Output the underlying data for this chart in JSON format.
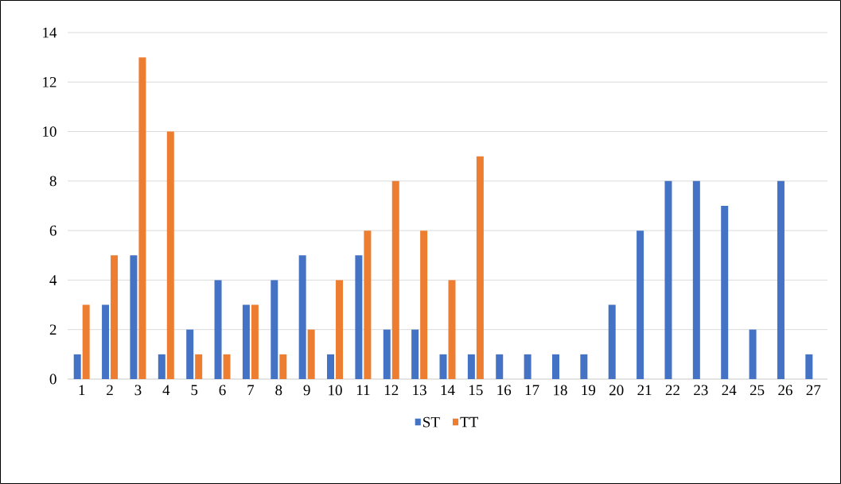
{
  "chart_data": {
    "type": "bar",
    "categories": [
      "1",
      "2",
      "3",
      "4",
      "5",
      "6",
      "7",
      "8",
      "9",
      "10",
      "11",
      "12",
      "13",
      "14",
      "15",
      "16",
      "17",
      "18",
      "19",
      "20",
      "21",
      "22",
      "23",
      "24",
      "25",
      "26",
      "27"
    ],
    "series": [
      {
        "name": "ST",
        "color": "#4472c4",
        "values": [
          1,
          3,
          5,
          1,
          2,
          4,
          3,
          4,
          5,
          1,
          5,
          2,
          2,
          1,
          1,
          1,
          1,
          1,
          1,
          3,
          6,
          8,
          8,
          7,
          2,
          8,
          1
        ]
      },
      {
        "name": "TT",
        "color": "#ed7d31",
        "values": [
          3,
          5,
          13,
          10,
          1,
          1,
          3,
          1,
          2,
          4,
          6,
          8,
          6,
          4,
          9,
          null,
          null,
          null,
          null,
          null,
          null,
          null,
          null,
          null,
          null,
          null,
          null
        ]
      }
    ],
    "ylim": [
      0,
      14
    ],
    "yticks": [
      0,
      2,
      4,
      6,
      8,
      10,
      12,
      14
    ],
    "grid": "y",
    "legend": "bottom"
  }
}
